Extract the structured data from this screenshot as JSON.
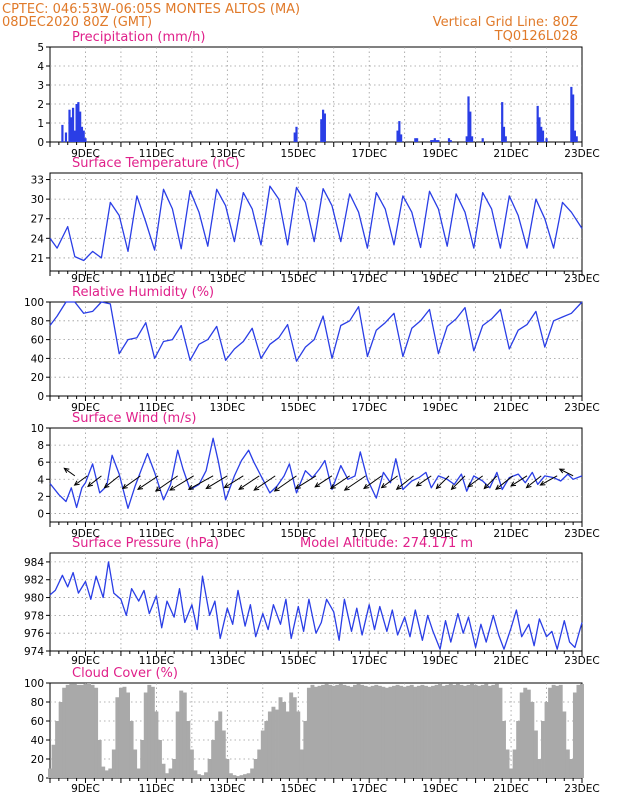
{
  "header": {
    "line1_left": "CPTEC:   046:53W-06:05S   MONTES ALTOS (MA)",
    "line2_left": "08DEC2020 80Z (GMT)",
    "line2_right": "Vertical Grid Line: 80Z",
    "line3_right": "TQ0126L028"
  },
  "colors": {
    "header": "#e07a2a",
    "title": "#e0208a",
    "series": "#2a3ee6",
    "cloud": "#a9a9a9",
    "grid": "#9a9a9a"
  },
  "chart_data": [
    {
      "id": "precip",
      "type": "bar",
      "title": "Precipitation (mm/h)",
      "ylim": [
        0,
        5
      ],
      "yticks": [
        0,
        1,
        2,
        3,
        4,
        5
      ],
      "x_ticks": [
        "9DEC",
        "11DEC",
        "13DEC",
        "15DEC",
        "17DEC",
        "19DEC",
        "21DEC",
        "23DEC"
      ],
      "x_range_days": [
        8.0,
        23.0
      ],
      "x": [
        8.35,
        8.45,
        8.55,
        8.6,
        8.65,
        8.7,
        8.75,
        8.8,
        8.85,
        8.9,
        8.95,
        9.0,
        14.9,
        14.95,
        15.65,
        15.7,
        15.75,
        17.8,
        17.85,
        17.9,
        18.3,
        18.35,
        18.75,
        18.8,
        18.85,
        18.9,
        18.95,
        19.25,
        19.3,
        19.75,
        19.8,
        19.85,
        19.9,
        20.2,
        20.75,
        20.8,
        20.85,
        21.75,
        21.8,
        21.85,
        21.9,
        22.0,
        22.7,
        22.75,
        22.8,
        22.85
      ],
      "values": [
        0.9,
        0.5,
        1.7,
        1.3,
        1.8,
        0.6,
        2.0,
        2.1,
        1.6,
        0.8,
        0.6,
        0.2,
        0.5,
        0.8,
        1.2,
        1.7,
        1.5,
        0.6,
        1.1,
        0.4,
        0.2,
        0.2,
        0.1,
        0.1,
        0.2,
        0.1,
        0.1,
        0.2,
        0.1,
        0.3,
        2.4,
        1.6,
        0.3,
        0.2,
        2.1,
        0.8,
        0.3,
        1.9,
        1.3,
        0.8,
        0.6,
        0.2,
        2.9,
        2.5,
        0.6,
        0.3
      ]
    },
    {
      "id": "temp",
      "type": "line",
      "title": "Surface Temperature (nC)",
      "ylim": [
        19,
        34
      ],
      "yticks": [
        21,
        24,
        27,
        30,
        33
      ],
      "x_ticks": [
        "9DEC",
        "11DEC",
        "13DEC",
        "15DEC",
        "17DEC",
        "19DEC",
        "21DEC",
        "23DEC"
      ],
      "x_range_days": [
        8.0,
        23.0
      ],
      "x": [
        8.0,
        8.2,
        8.5,
        8.7,
        8.95,
        9.2,
        9.45,
        9.7,
        9.95,
        10.2,
        10.45,
        10.7,
        10.95,
        11.2,
        11.45,
        11.7,
        11.95,
        12.2,
        12.45,
        12.7,
        12.95,
        13.2,
        13.45,
        13.7,
        13.95,
        14.2,
        14.45,
        14.7,
        14.95,
        15.2,
        15.45,
        15.7,
        15.95,
        16.2,
        16.45,
        16.7,
        16.95,
        17.2,
        17.45,
        17.7,
        17.95,
        18.2,
        18.45,
        18.7,
        18.95,
        19.2,
        19.45,
        19.7,
        19.95,
        20.2,
        20.45,
        20.7,
        20.95,
        21.2,
        21.45,
        21.7,
        21.95,
        22.2,
        22.45,
        22.7,
        23.0
      ],
      "values": [
        24.0,
        22.5,
        25.8,
        21.2,
        20.6,
        22.0,
        21.0,
        29.5,
        27.5,
        22.0,
        30.5,
        26.5,
        22.2,
        31.5,
        28.5,
        22.4,
        31.3,
        28.0,
        22.8,
        31.5,
        29.0,
        23.5,
        31.0,
        28.5,
        23.0,
        32.0,
        30.0,
        23.0,
        31.8,
        29.5,
        23.5,
        31.6,
        29.0,
        23.5,
        30.8,
        28.0,
        22.5,
        31.0,
        28.5,
        23.0,
        30.5,
        28.0,
        22.6,
        31.2,
        28.5,
        22.8,
        30.8,
        28.0,
        22.5,
        31.0,
        28.5,
        22.5,
        30.5,
        27.5,
        22.5,
        30.0,
        27.0,
        22.5,
        29.5,
        28.0,
        25.5
      ]
    },
    {
      "id": "rh",
      "type": "line",
      "title": "Relative Humidity (%)",
      "ylim": [
        0,
        100
      ],
      "yticks": [
        0,
        20,
        40,
        60,
        80,
        100
      ],
      "x_ticks": [
        "9DEC",
        "11DEC",
        "13DEC",
        "15DEC",
        "17DEC",
        "19DEC",
        "21DEC",
        "23DEC"
      ],
      "x_range_days": [
        8.0,
        23.0
      ],
      "x": [
        8.0,
        8.2,
        8.45,
        8.7,
        8.95,
        9.2,
        9.45,
        9.7,
        9.95,
        10.2,
        10.45,
        10.7,
        10.95,
        11.2,
        11.45,
        11.7,
        11.95,
        12.2,
        12.45,
        12.7,
        12.95,
        13.2,
        13.45,
        13.7,
        13.95,
        14.2,
        14.45,
        14.7,
        14.95,
        15.2,
        15.45,
        15.7,
        15.95,
        16.2,
        16.45,
        16.7,
        16.95,
        17.2,
        17.45,
        17.7,
        17.95,
        18.2,
        18.45,
        18.7,
        18.95,
        19.2,
        19.45,
        19.7,
        19.95,
        20.2,
        20.45,
        20.7,
        20.95,
        21.2,
        21.45,
        21.7,
        21.95,
        22.2,
        22.45,
        22.7,
        23.0
      ],
      "values": [
        75,
        85,
        100,
        100,
        88,
        90,
        100,
        98,
        45,
        60,
        62,
        78,
        40,
        58,
        60,
        75,
        38,
        55,
        60,
        74,
        38,
        50,
        58,
        72,
        40,
        55,
        62,
        76,
        37,
        52,
        60,
        85,
        40,
        75,
        80,
        95,
        42,
        70,
        78,
        88,
        42,
        72,
        80,
        92,
        45,
        74,
        82,
        94,
        48,
        75,
        82,
        92,
        50,
        70,
        76,
        90,
        52,
        80,
        84,
        88,
        100
      ]
    },
    {
      "id": "wind",
      "type": "line",
      "title": "Surface Wind (m/s)",
      "ylim": [
        -1,
        10
      ],
      "yticks": [
        0,
        2,
        4,
        6,
        8,
        10
      ],
      "x_ticks": [
        "9DEC",
        "11DEC",
        "13DEC",
        "15DEC",
        "17DEC",
        "19DEC",
        "21DEC",
        "23DEC"
      ],
      "x_range_days": [
        8.0,
        23.0
      ],
      "x": [
        8.0,
        8.25,
        8.45,
        8.6,
        8.75,
        8.9,
        9.0,
        9.2,
        9.4,
        9.6,
        9.75,
        9.95,
        10.2,
        10.4,
        10.6,
        10.75,
        10.95,
        11.2,
        11.4,
        11.6,
        11.75,
        11.95,
        12.2,
        12.4,
        12.6,
        12.75,
        12.95,
        13.2,
        13.4,
        13.6,
        13.75,
        13.95,
        14.2,
        14.4,
        14.6,
        14.75,
        14.95,
        15.2,
        15.4,
        15.6,
        15.75,
        15.95,
        16.2,
        16.4,
        16.6,
        16.75,
        16.95,
        17.2,
        17.4,
        17.6,
        17.75,
        17.95,
        18.2,
        18.4,
        18.6,
        18.75,
        18.95,
        19.2,
        19.4,
        19.6,
        19.75,
        19.95,
        20.2,
        20.4,
        20.6,
        20.75,
        20.95,
        21.2,
        21.4,
        21.6,
        21.75,
        21.95,
        22.2,
        22.4,
        22.6,
        22.75,
        23.0
      ],
      "values": [
        3.5,
        2.2,
        1.4,
        3.0,
        0.7,
        3.0,
        3.6,
        5.8,
        2.4,
        3.2,
        6.8,
        4.6,
        0.6,
        3.2,
        5.4,
        7.0,
        4.8,
        1.6,
        3.4,
        7.4,
        5.2,
        2.8,
        3.4,
        5.0,
        8.8,
        6.0,
        1.6,
        4.4,
        6.2,
        7.4,
        6.0,
        4.4,
        2.4,
        3.2,
        4.4,
        5.8,
        2.4,
        5.0,
        4.2,
        5.2,
        6.2,
        2.8,
        5.6,
        4.0,
        4.4,
        7.2,
        4.0,
        1.8,
        4.8,
        3.6,
        6.4,
        2.8,
        3.8,
        4.2,
        4.8,
        3.0,
        4.4,
        4.0,
        3.4,
        4.6,
        2.6,
        4.4,
        3.8,
        3.0,
        4.8,
        2.8,
        4.2,
        4.6,
        3.6,
        4.8,
        3.4,
        4.4,
        4.2,
        3.8,
        4.6,
        4.0,
        4.4
      ],
      "vectors": {
        "x": [
          8.7,
          9.05,
          9.45,
          9.95,
          10.55,
          11.05,
          11.6,
          12.05,
          12.6,
          13.0,
          13.45,
          13.9,
          14.35,
          14.95,
          15.5,
          15.95,
          16.45,
          16.9,
          17.35,
          17.8,
          18.25,
          18.75,
          19.25,
          19.7,
          20.2,
          20.6,
          21.05,
          21.45,
          21.85,
          22.3,
          22.75
        ],
        "u": [
          -2.5,
          -3.0,
          -3.2,
          -3.5,
          -4.2,
          -4.8,
          -5.2,
          -5.6,
          -5.8,
          -5.0,
          -4.5,
          -4.8,
          -5.0,
          -5.2,
          -4.8,
          -4.0,
          -4.5,
          -5.0,
          -4.2,
          -3.8,
          -4.0,
          -3.5,
          -3.0,
          -3.2,
          -3.5,
          -3.0,
          -4.0,
          -3.8,
          -3.5,
          -4.0,
          -3.2
        ],
        "v": [
          1.8,
          -2.2,
          -2.5,
          -2.8,
          -3.0,
          -3.2,
          -3.6,
          -3.4,
          -3.2,
          -3.0,
          -2.8,
          -3.2,
          -3.4,
          -3.6,
          -3.0,
          -2.6,
          -3.0,
          -3.4,
          -3.0,
          -2.8,
          -3.2,
          -2.4,
          -3.0,
          -3.2,
          -2.6,
          -3.0,
          -3.2,
          -2.4,
          -2.8,
          -2.2,
          1.6
        ]
      }
    },
    {
      "id": "pressure",
      "type": "line",
      "title": "Surface Pressure (hPa)",
      "annotation": "Model Altitude: 274.171 m",
      "ylim": [
        974,
        985
      ],
      "yticks": [
        974,
        976,
        978,
        980,
        982,
        984
      ],
      "x_ticks": [
        "9DEC",
        "11DEC",
        "13DEC",
        "15DEC",
        "17DEC",
        "19DEC",
        "21DEC",
        "23DEC"
      ],
      "x_range_days": [
        8.0,
        23.0
      ],
      "x": [
        8.0,
        8.15,
        8.35,
        8.5,
        8.65,
        8.8,
        9.0,
        9.15,
        9.3,
        9.5,
        9.65,
        9.8,
        10.0,
        10.15,
        10.3,
        10.5,
        10.65,
        10.8,
        11.0,
        11.15,
        11.3,
        11.5,
        11.65,
        11.8,
        12.0,
        12.15,
        12.3,
        12.5,
        12.65,
        12.8,
        13.0,
        13.15,
        13.3,
        13.5,
        13.65,
        13.8,
        14.0,
        14.15,
        14.3,
        14.5,
        14.65,
        14.8,
        15.0,
        15.15,
        15.3,
        15.5,
        15.65,
        15.8,
        16.0,
        16.15,
        16.3,
        16.5,
        16.65,
        16.8,
        17.0,
        17.15,
        17.3,
        17.5,
        17.65,
        17.8,
        18.0,
        18.15,
        18.3,
        18.5,
        18.65,
        18.8,
        19.0,
        19.15,
        19.3,
        19.5,
        19.65,
        19.8,
        20.0,
        20.15,
        20.3,
        20.5,
        20.65,
        20.8,
        21.0,
        21.15,
        21.3,
        21.5,
        21.65,
        21.8,
        22.0,
        22.15,
        22.3,
        22.5,
        22.65,
        22.8,
        23.0
      ],
      "values": [
        980.3,
        980.8,
        982.5,
        981.2,
        982.8,
        980.5,
        981.8,
        979.8,
        982.4,
        980.0,
        984.0,
        980.5,
        979.8,
        978.0,
        981.0,
        979.6,
        980.8,
        978.2,
        980.2,
        976.6,
        979.6,
        977.8,
        981.0,
        977.2,
        979.2,
        976.4,
        982.4,
        978.0,
        979.6,
        975.4,
        978.8,
        977.0,
        980.8,
        976.8,
        979.2,
        975.6,
        978.2,
        976.4,
        979.2,
        977.0,
        979.8,
        975.4,
        979.0,
        976.2,
        979.8,
        976.0,
        977.2,
        979.8,
        978.4,
        975.2,
        979.8,
        976.2,
        978.8,
        975.8,
        979.2,
        976.4,
        979.0,
        976.2,
        978.6,
        975.8,
        977.8,
        975.6,
        978.6,
        975.2,
        978.0,
        976.2,
        974.2,
        977.4,
        975.0,
        978.2,
        976.0,
        977.8,
        974.4,
        977.0,
        975.0,
        978.0,
        975.8,
        974.2,
        976.6,
        978.6,
        975.6,
        977.0,
        974.6,
        977.6,
        975.6,
        976.2,
        974.2,
        977.4,
        975.0,
        974.4,
        977.2
      ]
    },
    {
      "id": "cloud",
      "type": "area",
      "title": "Cloud Cover (%)",
      "ylim": [
        0,
        100
      ],
      "yticks": [
        0,
        20,
        40,
        60,
        80,
        100
      ],
      "x_ticks": [
        "9DEC",
        "11DEC",
        "13DEC",
        "15DEC",
        "17DEC",
        "19DEC",
        "21DEC",
        "23DEC"
      ],
      "x_range_days": [
        8.0,
        23.0
      ],
      "x": [
        8.0,
        8.1,
        8.2,
        8.3,
        8.4,
        8.5,
        8.6,
        8.7,
        8.8,
        8.9,
        9.0,
        9.1,
        9.2,
        9.3,
        9.4,
        9.5,
        9.6,
        9.7,
        9.8,
        9.9,
        10.0,
        10.1,
        10.2,
        10.3,
        10.4,
        10.5,
        10.6,
        10.7,
        10.8,
        10.9,
        11.0,
        11.1,
        11.2,
        11.3,
        11.4,
        11.5,
        11.6,
        11.7,
        11.8,
        11.9,
        12.0,
        12.1,
        12.2,
        12.3,
        12.4,
        12.5,
        12.6,
        12.7,
        12.8,
        12.9,
        13.0,
        13.1,
        13.2,
        13.3,
        13.4,
        13.5,
        13.6,
        13.7,
        13.8,
        13.9,
        14.0,
        14.1,
        14.2,
        14.3,
        14.4,
        14.5,
        14.6,
        14.7,
        14.8,
        14.9,
        15.0,
        15.1,
        15.2,
        15.3,
        15.4,
        15.5,
        15.6,
        15.7,
        15.8,
        15.9,
        16.0,
        16.1,
        16.2,
        16.3,
        16.4,
        16.5,
        16.6,
        16.7,
        16.8,
        16.9,
        17.0,
        17.1,
        17.2,
        17.3,
        17.4,
        17.5,
        17.6,
        17.7,
        17.8,
        17.9,
        18.0,
        18.1,
        18.2,
        18.3,
        18.4,
        18.5,
        18.6,
        18.7,
        18.8,
        18.9,
        19.0,
        19.1,
        19.2,
        19.3,
        19.4,
        19.5,
        19.6,
        19.7,
        19.8,
        19.9,
        20.0,
        20.1,
        20.2,
        20.3,
        20.4,
        20.5,
        20.6,
        20.7,
        20.8,
        20.9,
        21.0,
        21.1,
        21.2,
        21.3,
        21.4,
        21.5,
        21.6,
        21.7,
        21.8,
        21.9,
        22.0,
        22.1,
        22.2,
        22.3,
        22.4,
        22.5,
        22.6,
        22.7,
        22.8,
        22.9,
        23.0
      ],
      "values": [
        10,
        35,
        60,
        80,
        95,
        98,
        99,
        99,
        98,
        98,
        99,
        100,
        98,
        95,
        40,
        12,
        8,
        10,
        30,
        85,
        95,
        96,
        90,
        60,
        30,
        10,
        40,
        90,
        98,
        96,
        70,
        40,
        15,
        5,
        10,
        20,
        70,
        92,
        90,
        60,
        30,
        8,
        4,
        3,
        6,
        20,
        40,
        60,
        70,
        50,
        20,
        5,
        3,
        2,
        3,
        4,
        5,
        10,
        20,
        30,
        50,
        60,
        70,
        75,
        72,
        85,
        80,
        70,
        90,
        85,
        70,
        30,
        60,
        95,
        98,
        96,
        97,
        98,
        99,
        98,
        97,
        98,
        99,
        98,
        97,
        96,
        98,
        99,
        98,
        97,
        96,
        97,
        98,
        97,
        96,
        95,
        96,
        97,
        98,
        97,
        96,
        97,
        98,
        96,
        97,
        98,
        97,
        96,
        97,
        98,
        99,
        97,
        98,
        99,
        98,
        99,
        98,
        97,
        98,
        99,
        98,
        97,
        98,
        99,
        97,
        98,
        99,
        95,
        60,
        30,
        10,
        30,
        60,
        90,
        95,
        93,
        80,
        50,
        20,
        60,
        80,
        95,
        98,
        97,
        98,
        70,
        30,
        20,
        90,
        98,
        99
      ]
    }
  ]
}
